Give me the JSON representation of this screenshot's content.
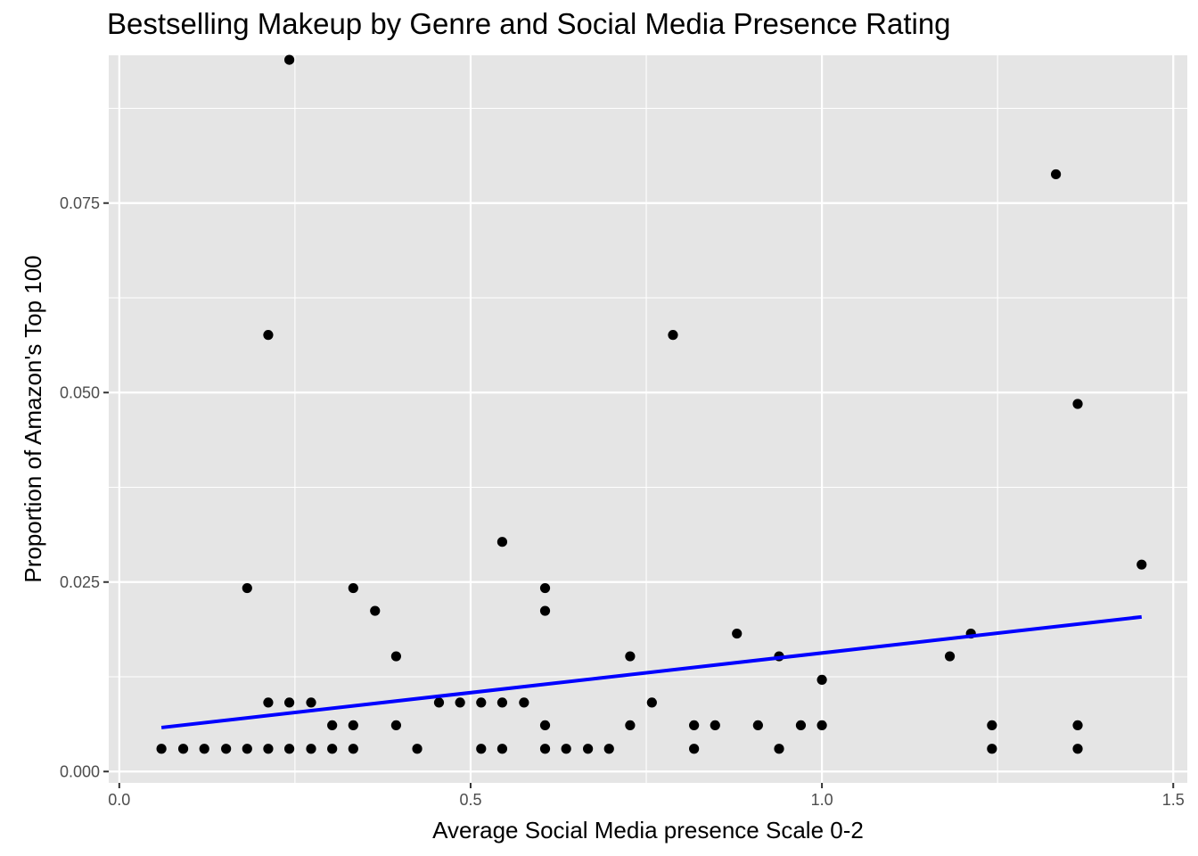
{
  "chart_data": {
    "type": "scatter",
    "title": "Bestselling Makeup by Genre and Social Media Presence Rating",
    "xlabel": "Average Social Media presence Scale 0-2",
    "ylabel": "Proportion of Amazon's Top 100",
    "xlim": [
      -0.015,
      1.52
    ],
    "ylim": [
      -0.0015,
      0.0945
    ],
    "x_ticks": [
      0.0,
      0.5,
      1.0,
      1.5
    ],
    "x_tick_labels": [
      "0.0",
      "0.5",
      "1.0",
      "1.5"
    ],
    "y_ticks": [
      0.0,
      0.025,
      0.05,
      0.075
    ],
    "y_tick_labels": [
      "0.000",
      "0.025",
      "0.050",
      "0.075"
    ],
    "grid": true,
    "points": [
      {
        "x": 0.06,
        "y": 0.003
      },
      {
        "x": 0.091,
        "y": 0.003
      },
      {
        "x": 0.121,
        "y": 0.003
      },
      {
        "x": 0.152,
        "y": 0.003
      },
      {
        "x": 0.182,
        "y": 0.003
      },
      {
        "x": 0.182,
        "y": 0.0242
      },
      {
        "x": 0.212,
        "y": 0.003
      },
      {
        "x": 0.212,
        "y": 0.0091
      },
      {
        "x": 0.212,
        "y": 0.0576
      },
      {
        "x": 0.242,
        "y": 0.003
      },
      {
        "x": 0.242,
        "y": 0.0091
      },
      {
        "x": 0.242,
        "y": 0.0939
      },
      {
        "x": 0.273,
        "y": 0.003
      },
      {
        "x": 0.273,
        "y": 0.0091
      },
      {
        "x": 0.303,
        "y": 0.003
      },
      {
        "x": 0.303,
        "y": 0.0061
      },
      {
        "x": 0.333,
        "y": 0.003
      },
      {
        "x": 0.333,
        "y": 0.0061
      },
      {
        "x": 0.333,
        "y": 0.0242
      },
      {
        "x": 0.364,
        "y": 0.0212
      },
      {
        "x": 0.394,
        "y": 0.0061
      },
      {
        "x": 0.394,
        "y": 0.0152
      },
      {
        "x": 0.424,
        "y": 0.003
      },
      {
        "x": 0.455,
        "y": 0.0091
      },
      {
        "x": 0.485,
        "y": 0.0091
      },
      {
        "x": 0.515,
        "y": 0.003
      },
      {
        "x": 0.515,
        "y": 0.0091
      },
      {
        "x": 0.545,
        "y": 0.003
      },
      {
        "x": 0.545,
        "y": 0.0091
      },
      {
        "x": 0.545,
        "y": 0.0303
      },
      {
        "x": 0.576,
        "y": 0.0091
      },
      {
        "x": 0.606,
        "y": 0.003
      },
      {
        "x": 0.606,
        "y": 0.0061
      },
      {
        "x": 0.606,
        "y": 0.0212
      },
      {
        "x": 0.606,
        "y": 0.0242
      },
      {
        "x": 0.636,
        "y": 0.003
      },
      {
        "x": 0.667,
        "y": 0.003
      },
      {
        "x": 0.697,
        "y": 0.003
      },
      {
        "x": 0.727,
        "y": 0.0061
      },
      {
        "x": 0.727,
        "y": 0.0152
      },
      {
        "x": 0.758,
        "y": 0.0091
      },
      {
        "x": 0.788,
        "y": 0.0576
      },
      {
        "x": 0.818,
        "y": 0.003
      },
      {
        "x": 0.818,
        "y": 0.0061
      },
      {
        "x": 0.848,
        "y": 0.0061
      },
      {
        "x": 0.879,
        "y": 0.0182
      },
      {
        "x": 0.909,
        "y": 0.0061
      },
      {
        "x": 0.939,
        "y": 0.003
      },
      {
        "x": 0.939,
        "y": 0.0152
      },
      {
        "x": 0.97,
        "y": 0.0061
      },
      {
        "x": 1.0,
        "y": 0.0061
      },
      {
        "x": 1.0,
        "y": 0.0121
      },
      {
        "x": 1.182,
        "y": 0.0152
      },
      {
        "x": 1.212,
        "y": 0.0182
      },
      {
        "x": 1.242,
        "y": 0.003
      },
      {
        "x": 1.242,
        "y": 0.0061
      },
      {
        "x": 1.333,
        "y": 0.0788
      },
      {
        "x": 1.364,
        "y": 0.003
      },
      {
        "x": 1.364,
        "y": 0.0061
      },
      {
        "x": 1.364,
        "y": 0.0485
      },
      {
        "x": 1.455,
        "y": 0.0273
      }
    ],
    "trend_line": {
      "x": [
        0.06,
        1.455
      ],
      "y": [
        0.0058,
        0.0204
      ]
    },
    "colors": {
      "panel_bg": "#e5e5e5",
      "grid": "#ffffff",
      "point": "#000000",
      "trend": "#0000ff",
      "tick_text": "#4d4d4d",
      "tick_mark": "#333333"
    }
  }
}
